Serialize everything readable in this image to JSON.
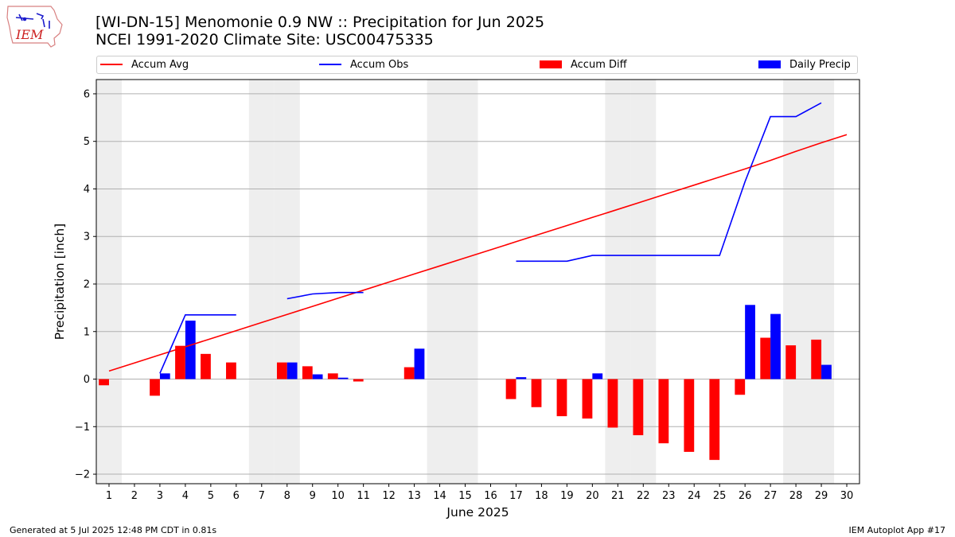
{
  "header": {
    "title_line1": "[WI-DN-15] Menomonie 0.9 NW :: Precipitation for Jun 2025",
    "title_line2": "NCEI 1991-2020 Climate Site: USC00475335",
    "logo_text": "IEM"
  },
  "footer": {
    "generated": "Generated at 5 Jul 2025 12:48 PM CDT in 0.81s",
    "app": "IEM Autoplot App #17"
  },
  "colors": {
    "accum_avg": "#ff0000",
    "accum_obs": "#0000ff",
    "accum_diff": "#ff0000",
    "daily_precip": "#0000ff",
    "weekend_shade": "#eeeeee",
    "grid": "#b0b0b0"
  },
  "chart_data": {
    "type": "bar",
    "xlabel": "June 2025",
    "ylabel": "Precipitation [inch]",
    "ylim": [
      -2.2,
      6.3
    ],
    "yticks": [
      -2,
      -1,
      0,
      1,
      2,
      3,
      4,
      5,
      6
    ],
    "ytick_labels": [
      "−2",
      "−1",
      "0",
      "1",
      "2",
      "3",
      "4",
      "5",
      "6"
    ],
    "grid": "horizontal",
    "legend_placement": "top",
    "legend": [
      {
        "label": "Accum Avg",
        "kind": "line",
        "color": "#ff0000"
      },
      {
        "label": "Accum Obs",
        "kind": "line",
        "color": "#0000ff"
      },
      {
        "label": "Accum Diff",
        "kind": "bar",
        "color": "#ff0000"
      },
      {
        "label": "Daily Precip",
        "kind": "bar",
        "color": "#0000ff"
      }
    ],
    "days": [
      1,
      2,
      3,
      4,
      5,
      6,
      7,
      8,
      9,
      10,
      11,
      12,
      13,
      14,
      15,
      16,
      17,
      18,
      19,
      20,
      21,
      22,
      23,
      24,
      25,
      26,
      27,
      28,
      29,
      30
    ],
    "weekend_days": [
      1,
      7,
      8,
      14,
      15,
      21,
      22,
      28,
      29
    ],
    "series": [
      {
        "name": "Accum Avg",
        "type": "line",
        "values": [
          0.17,
          0.34,
          0.51,
          0.68,
          0.85,
          1.02,
          1.19,
          1.36,
          1.53,
          1.7,
          1.87,
          2.04,
          2.21,
          2.38,
          2.55,
          2.72,
          2.89,
          3.06,
          3.23,
          3.4,
          3.57,
          3.74,
          3.91,
          4.08,
          4.25,
          4.42,
          4.6,
          4.79,
          4.97,
          5.14
        ]
      },
      {
        "name": "Accum Obs",
        "type": "line",
        "values": [
          null,
          null,
          0.12,
          1.35,
          1.35,
          1.35,
          null,
          1.69,
          1.79,
          1.82,
          1.82,
          null,
          null,
          null,
          null,
          null,
          2.48,
          2.48,
          2.48,
          2.6,
          2.6,
          2.6,
          2.6,
          2.6,
          2.6,
          4.15,
          5.52,
          5.52,
          5.81,
          null
        ]
      },
      {
        "name": "Accum Diff",
        "type": "bar",
        "values": [
          -0.13,
          0,
          -0.35,
          0.7,
          0.53,
          0.35,
          0,
          0.35,
          0.27,
          0.12,
          -0.05,
          0,
          0.25,
          0,
          0,
          0,
          -0.42,
          -0.59,
          -0.78,
          -0.83,
          -1.02,
          -1.18,
          -1.35,
          -1.53,
          -1.7,
          -0.33,
          0.87,
          0.71,
          0.83,
          0
        ]
      },
      {
        "name": "Daily Precip",
        "type": "bar",
        "values": [
          0,
          0,
          0.12,
          1.23,
          0,
          0,
          0,
          0.35,
          0.1,
          0.03,
          0,
          0,
          0.64,
          0,
          0,
          0,
          0.04,
          0,
          0,
          0.12,
          0,
          0,
          0,
          0,
          0,
          1.56,
          1.37,
          0,
          0.3,
          0
        ]
      }
    ]
  }
}
